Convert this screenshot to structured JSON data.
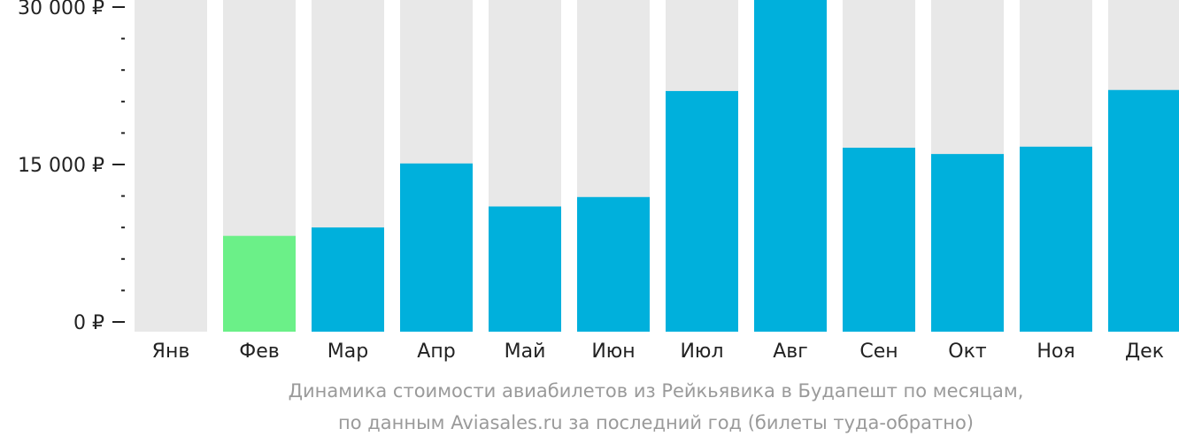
{
  "chart_data": {
    "type": "bar",
    "categories": [
      "Янв",
      "Фев",
      "Мар",
      "Апр",
      "Май",
      "Июн",
      "Июл",
      "Авг",
      "Сен",
      "Окт",
      "Ноя",
      "Дек"
    ],
    "values": [
      null,
      8200,
      9000,
      15100,
      11000,
      11900,
      22000,
      31000,
      16600,
      16000,
      16700,
      22100
    ],
    "ylim": [
      0,
      31000
    ],
    "yticks": [
      {
        "value": 0,
        "label": "0 ₽"
      },
      {
        "value": 15000,
        "label": "15 000 ₽"
      },
      {
        "value": 30000,
        "label": "30 000 ₽"
      }
    ],
    "minor_tick_step": 3000,
    "highlight_index": 1,
    "colors": {
      "bar": "#00b0dc",
      "highlight": "#6bf088",
      "background_bar": "#e8e8e8",
      "axis_text": "#222222",
      "caption": "#9a9a9a"
    },
    "grid": false,
    "legend": "none"
  },
  "caption": {
    "line1": "Динамика стоимости авиабилетов из Рейкьявика в Будапешт по месяцам,",
    "line2": "по данным Aviasales.ru за последний год (билеты туда-обратно)"
  }
}
